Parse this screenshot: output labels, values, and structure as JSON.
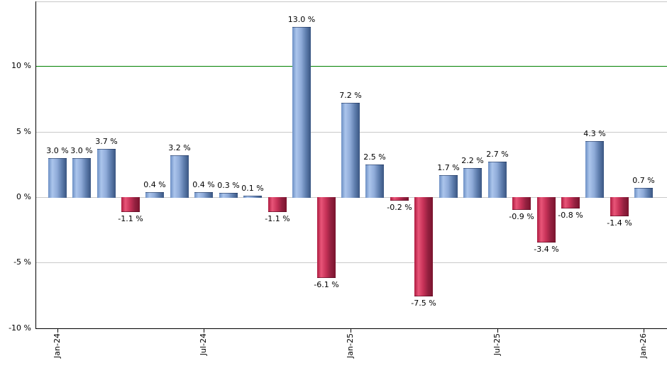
{
  "chart_data": {
    "type": "bar",
    "title": "",
    "xlabel": "",
    "ylabel": "",
    "values": [
      3.0,
      3.0,
      3.7,
      -1.1,
      0.4,
      3.2,
      0.4,
      0.3,
      0.1,
      -1.1,
      13.0,
      -6.1,
      7.2,
      2.5,
      -0.2,
      -7.5,
      1.7,
      2.2,
      2.7,
      -0.9,
      -3.4,
      -0.8,
      4.3,
      -1.4,
      0.7
    ],
    "bar_labels": [
      "3.0 %",
      "3.0 %",
      "3.7 %",
      "-1.1 %",
      "0.4 %",
      "3.2 %",
      "0.4 %",
      "0.3 %",
      "0.1 %",
      "-1.1 %",
      "13.0 %",
      "-6.1 %",
      "7.2 %",
      "2.5 %",
      "-0.2 %",
      "-7.5 %",
      "1.7 %",
      "2.2 %",
      "2.7 %",
      "-0.9 %",
      "-3.4 %",
      "-0.8 %",
      "4.3 %",
      "-1.4 %",
      "0.7 %"
    ],
    "x_ticks": [
      {
        "label": "Jan-24",
        "month_index": 0
      },
      {
        "label": "Jul-24",
        "month_index": 6
      },
      {
        "label": "Jan-25",
        "month_index": 12
      },
      {
        "label": "Jul-25",
        "month_index": 18
      },
      {
        "label": "Jan-26",
        "month_index": 24
      }
    ],
    "y_ticks": [
      {
        "label": "10 %",
        "value": 10
      },
      {
        "label": "5 %",
        "value": 5
      },
      {
        "label": "0 %",
        "value": 0
      },
      {
        "label": "-5 %",
        "value": -5
      },
      {
        "label": "-10 %",
        "value": -10
      }
    ],
    "ylim": [
      -10,
      14.9
    ],
    "grid": true,
    "legend": "none",
    "reference_line": {
      "value": 10,
      "color": "#008000"
    },
    "colors": {
      "positive_gradient": [
        "#6d90c4",
        "#abc5ec",
        "#8fabd8",
        "#5e7dad",
        "#3a5682"
      ],
      "negative_gradient": [
        "#ad1b40",
        "#e85578",
        "#c73258",
        "#93203f",
        "#7a142e"
      ],
      "gridline": "#c9c9c9",
      "axis": "#000000",
      "plot_border_top": "#c8c8c8",
      "label_text": "#000000",
      "background": "#ffffff"
    }
  }
}
